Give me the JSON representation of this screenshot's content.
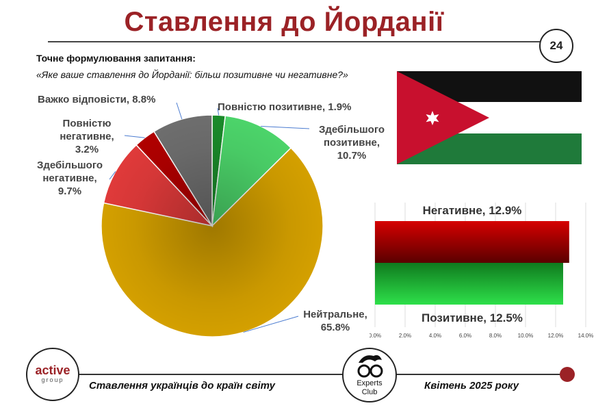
{
  "title": "Ставлення до Йорданії",
  "page_number": "24",
  "question": {
    "label": "Точне формулювання запитання:",
    "text": "«Яке ваше ставлення до Йорданії: більш позитивне чи негативне?»"
  },
  "chart_data": [
    {
      "type": "pie",
      "slices": [
        {
          "name": "Повністю позитивне",
          "value": 1.9,
          "label": "Повністю позитивне, 1.9%",
          "color": "#1a8a2a"
        },
        {
          "name": "Здебільшого позитивне",
          "value": 10.7,
          "label_lines": [
            "Здебільшого",
            "позитивне,",
            "10.7%"
          ],
          "color": "#4cd46a"
        },
        {
          "name": "Нейтральне",
          "value": 65.8,
          "label_lines": [
            "Нейтральне,",
            "65.8%"
          ],
          "color": "#d4a000"
        },
        {
          "name": "Здебільшого негативне",
          "value": 9.7,
          "label_lines": [
            "Здебільшого",
            "негативне,",
            "9.7%"
          ],
          "color": "#e03a3a"
        },
        {
          "name": "Повністю негативне",
          "value": 3.2,
          "label_lines": [
            "Повністю",
            "негативне, 3.2%"
          ],
          "color": "#b00000"
        },
        {
          "name": "Важко відповісти",
          "value": 8.8,
          "label": "Важко відповісти, 8.8%",
          "color": "#6e6e6e"
        }
      ]
    },
    {
      "type": "bar",
      "orientation": "horizontal",
      "categories": [
        "Негативне",
        "Позитивне"
      ],
      "values": [
        12.9,
        12.5
      ],
      "bar_labels": [
        "Негативне, 12.9%",
        "Позитивне, 12.5%"
      ],
      "colors": [
        "#c00000",
        "#1fae2f"
      ],
      "xlim": [
        0,
        14
      ],
      "ticks": [
        "0.0%",
        "2.0%",
        "4.0%",
        "6.0%",
        "8.0%",
        "10.0%",
        "12.0%",
        "14.0%"
      ]
    }
  ],
  "footer": {
    "left_logo_main": "active",
    "left_logo_sub": "group",
    "left_text": "Ставлення українців до країн світу",
    "center_logo_line1": "Experts",
    "center_logo_line2": "Club",
    "right_text": "Квітень 2025 року"
  },
  "colors": {
    "title": "#9b2226",
    "accent_dot": "#9b2226"
  }
}
